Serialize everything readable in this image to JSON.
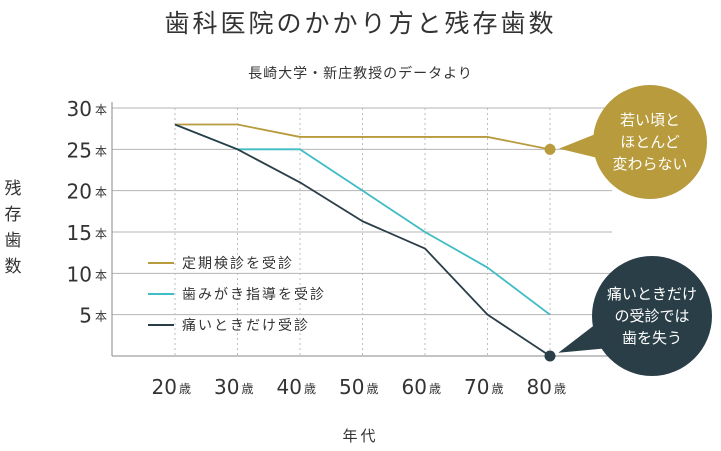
{
  "title": "歯科医院のかかり方と残存歯数",
  "subtitle": "長崎大学・新庄教授のデータより",
  "chart_data": {
    "type": "line",
    "title": "歯科医院のかかり方と残存歯数",
    "subtitle": "長崎大学・新庄教授のデータより",
    "xlabel": "年代",
    "ylabel": "残存歯数",
    "x": [
      20,
      30,
      40,
      50,
      60,
      70,
      80
    ],
    "x_tick_labels": [
      {
        "num": "20",
        "unit": "歳"
      },
      {
        "num": "30",
        "unit": "歳"
      },
      {
        "num": "40",
        "unit": "歳"
      },
      {
        "num": "50",
        "unit": "歳"
      },
      {
        "num": "60",
        "unit": "歳"
      },
      {
        "num": "70",
        "unit": "歳"
      },
      {
        "num": "80",
        "unit": "歳"
      }
    ],
    "y_ticks": [
      5,
      10,
      15,
      20,
      25,
      30
    ],
    "y_tick_unit": "本",
    "ylim": [
      0,
      30
    ],
    "grid": true,
    "legend_position": "lower-left",
    "series": [
      {
        "name": "定期検診を受診",
        "color": "#b89b3c",
        "values": [
          28,
          28,
          26.5,
          26.5,
          26.5,
          26.5,
          25
        ]
      },
      {
        "name": "歯みがき指導を受診",
        "color": "#3fbcc4",
        "values": [
          28,
          25,
          25,
          20,
          15,
          10.7,
          5
        ]
      },
      {
        "name": "痛いときだけ受診",
        "color": "#2a3e48",
        "values": [
          28,
          25,
          21,
          16.3,
          13,
          5,
          0
        ]
      }
    ],
    "annotations": [
      {
        "series": 0,
        "lines": [
          "若い頃と",
          "ほとんど",
          "変わらない"
        ],
        "color": "#b89b3c"
      },
      {
        "series": 2,
        "lines": [
          "痛いときだけ",
          "の受診では",
          "歯を失う"
        ],
        "color": "#2a3e48"
      }
    ]
  }
}
